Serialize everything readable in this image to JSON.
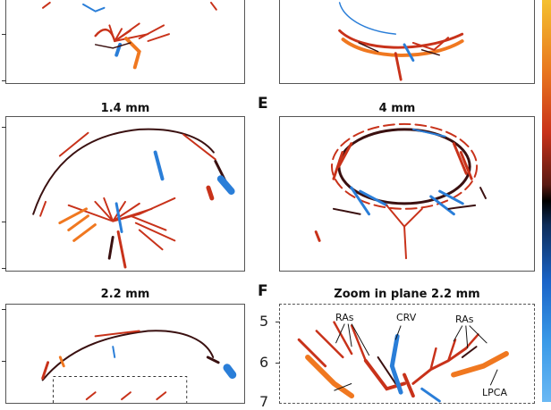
{
  "panels": {
    "a_top": {
      "label": ""
    },
    "d_title": "1.4 mm",
    "e_letter": "E",
    "e_title": "4 mm",
    "g_title": "2.2 mm",
    "f_letter": "F",
    "f_title": "Zoom in plane 2.2 mm"
  },
  "zoom_axis": {
    "ticks": [
      "5",
      "6",
      "7"
    ]
  },
  "annotations": {
    "ras_left": "RAs",
    "crv": "CRV",
    "ras_right": "RAs",
    "lpca": "LPCA"
  },
  "colors": {
    "red": "#c8321a",
    "orange": "#f07820",
    "dark": "#3a1010",
    "blue": "#2a7ed8"
  }
}
